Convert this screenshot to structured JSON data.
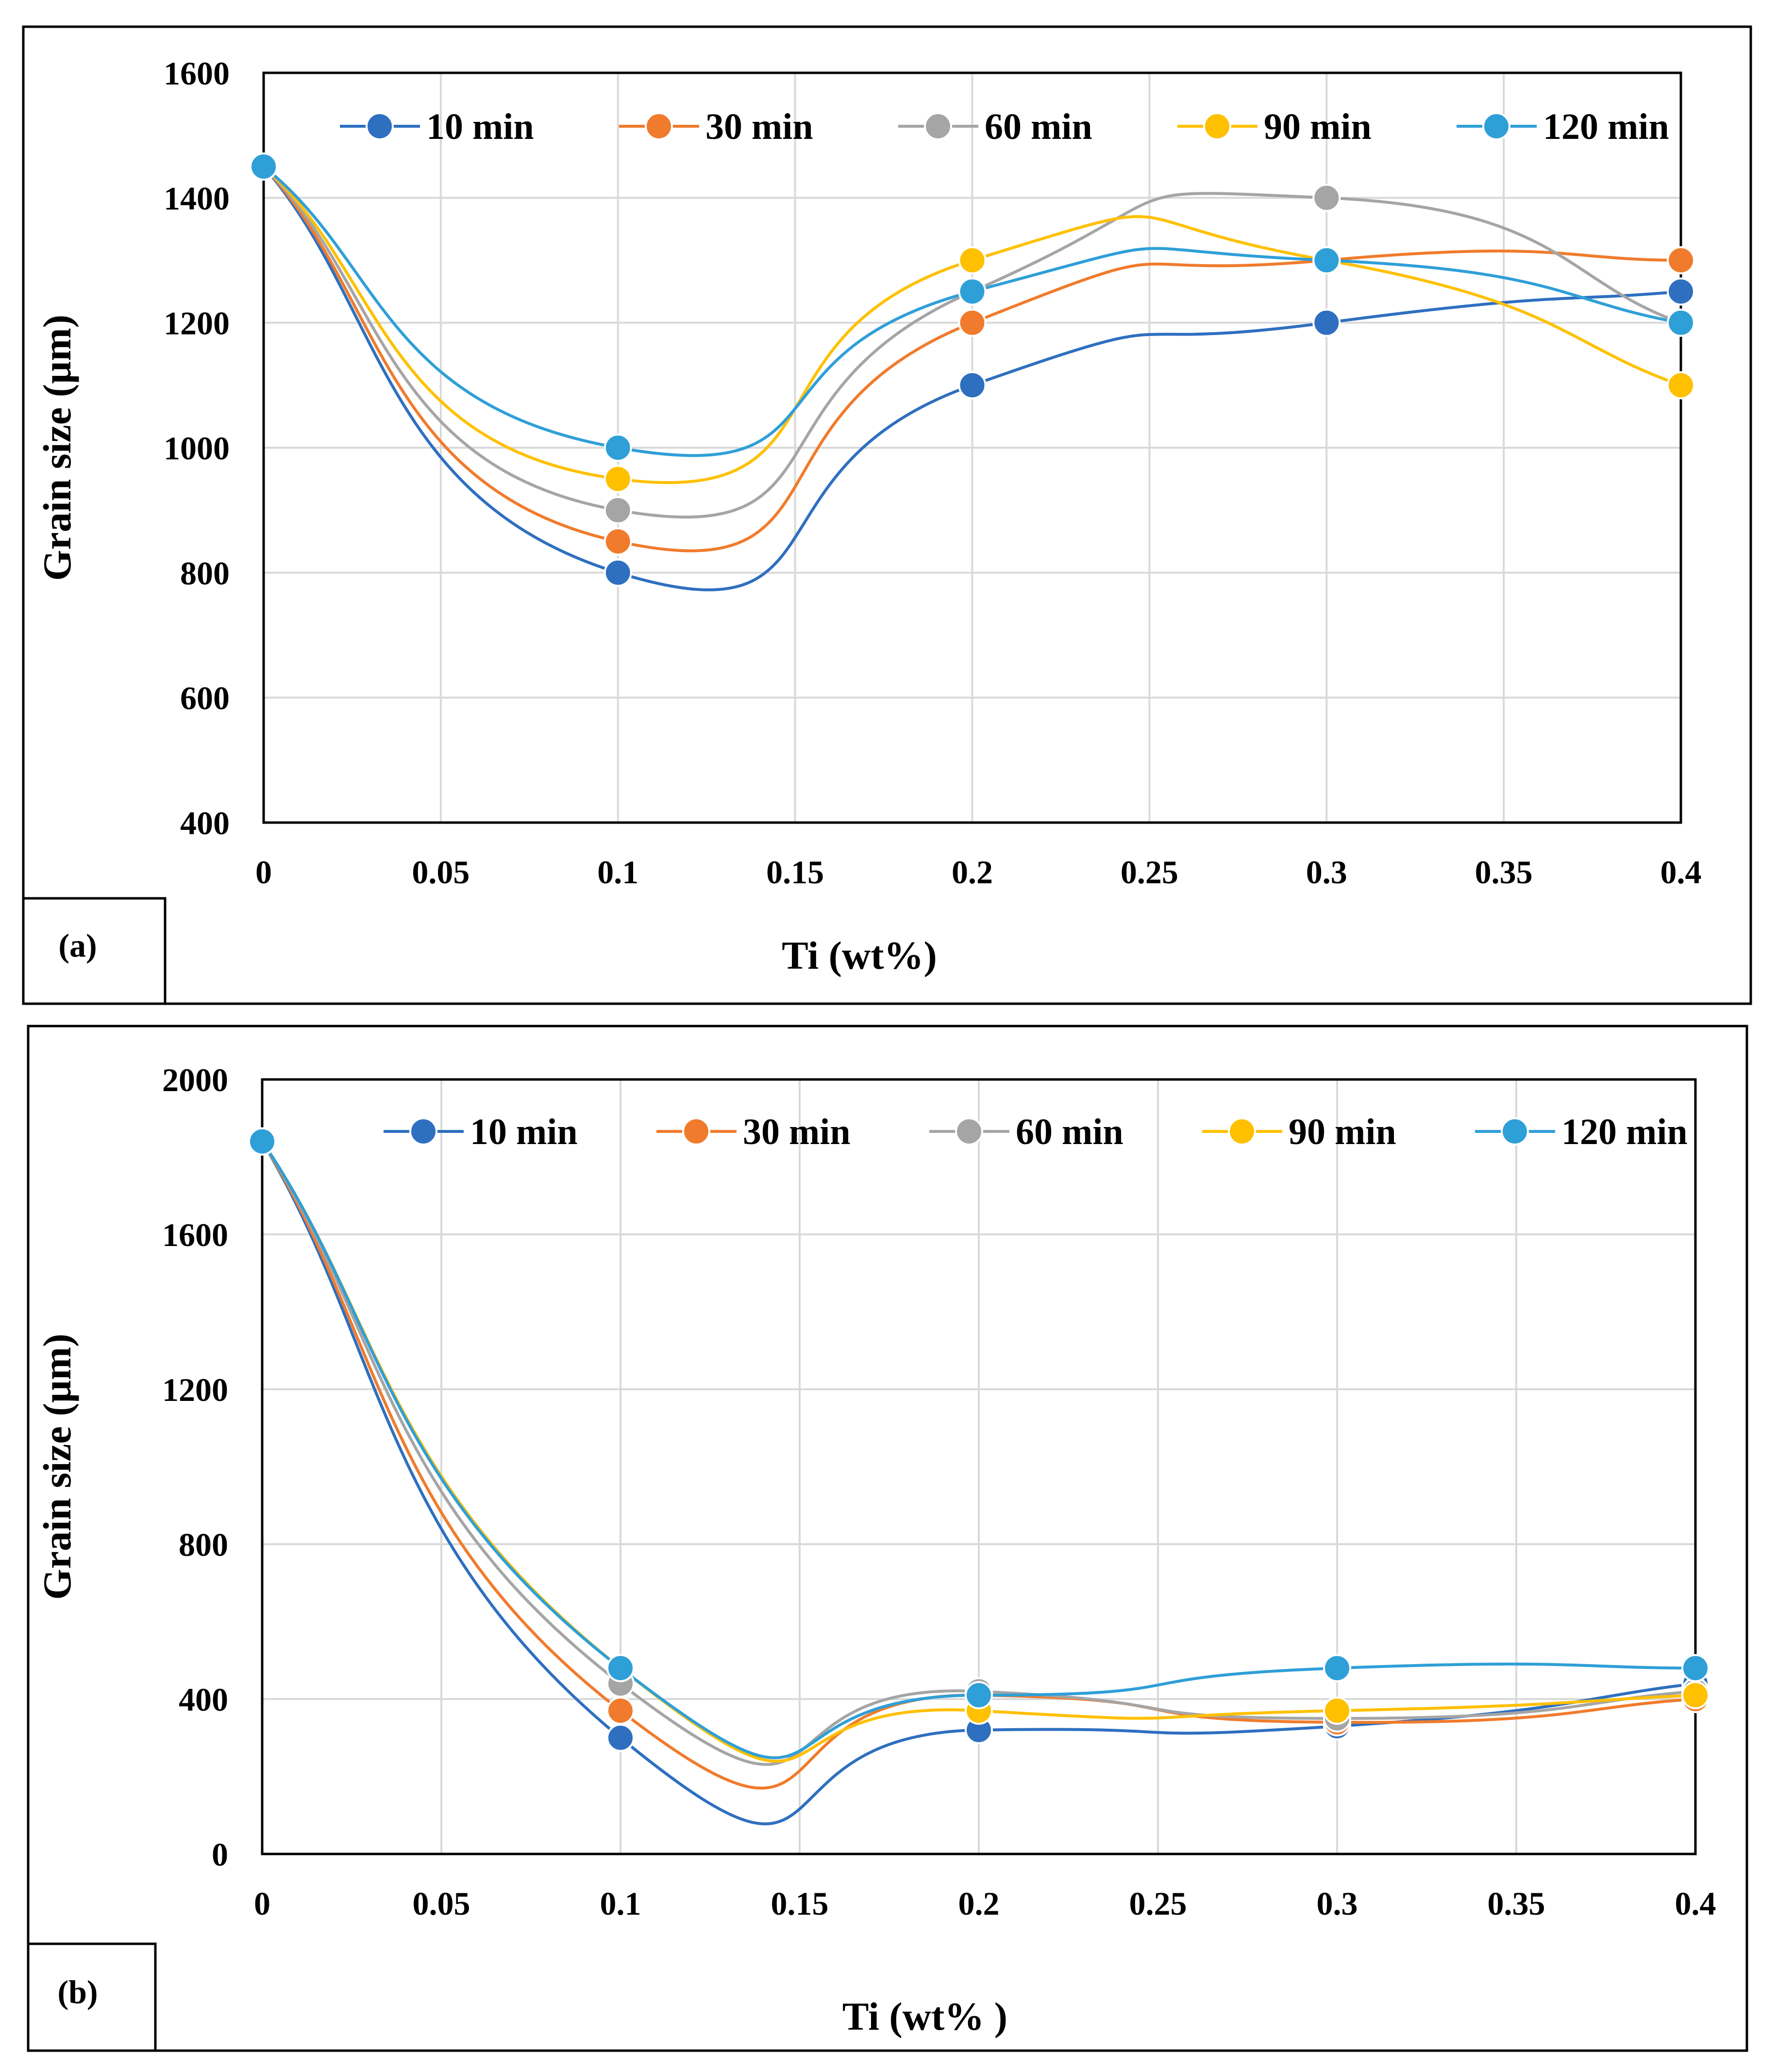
{
  "chart_data": [
    {
      "type": "line",
      "panel_label": "(a)",
      "xlabel": "Ti  (wt%)",
      "ylabel": "Grain size (µm)",
      "xlim": [
        0,
        0.4
      ],
      "ylim": [
        400,
        1600
      ],
      "x_ticks": [
        "0",
        "0.05",
        "0.1",
        "0.15",
        "0.2",
        "0.25",
        "0.3",
        "0.35",
        "0.4"
      ],
      "y_ticks": [
        "400",
        "600",
        "800",
        "1000",
        "1200",
        "1400",
        "1600"
      ],
      "grid": true,
      "legend_position": "top",
      "x": [
        0,
        0.1,
        0.2,
        0.3,
        0.4
      ],
      "series": [
        {
          "name": "10 min",
          "color": "#2e6fc0",
          "values": [
            1450,
            800,
            1100,
            1200,
            1250
          ]
        },
        {
          "name": "30 min",
          "color": "#f07b2c",
          "values": [
            1450,
            850,
            1200,
            1300,
            1300
          ]
        },
        {
          "name": "60 min",
          "color": "#a5a5a5",
          "values": [
            1450,
            900,
            1250,
            1400,
            1200
          ]
        },
        {
          "name": "90 min",
          "color": "#ffc000",
          "values": [
            1450,
            950,
            1300,
            1300,
            1100
          ]
        },
        {
          "name": "120 min",
          "color": "#2f9fd8",
          "values": [
            1450,
            1000,
            1250,
            1300,
            1200
          ]
        }
      ]
    },
    {
      "type": "line",
      "panel_label": "(b)",
      "xlabel": "Ti  (wt% )",
      "ylabel": "Grain size  (µm)",
      "xlim": [
        0,
        0.4
      ],
      "ylim": [
        0,
        2000
      ],
      "x_ticks": [
        "0",
        "0.05",
        "0.1",
        "0.15",
        "0.2",
        "0.25",
        "0.3",
        "0.35",
        "0.4"
      ],
      "y_ticks": [
        "0",
        "400",
        "800",
        "1200",
        "1600",
        "2000"
      ],
      "grid": true,
      "legend_position": "top",
      "x": [
        0,
        0.1,
        0.2,
        0.3,
        0.4
      ],
      "series": [
        {
          "name": "10 min",
          "color": "#2e6fc0",
          "values": [
            1840,
            300,
            320,
            330,
            440
          ]
        },
        {
          "name": "30 min",
          "color": "#f07b2c",
          "values": [
            1840,
            370,
            410,
            340,
            400
          ]
        },
        {
          "name": "60 min",
          "color": "#a5a5a5",
          "values": [
            1840,
            440,
            420,
            350,
            420
          ]
        },
        {
          "name": "90 min",
          "color": "#ffc000",
          "values": [
            1840,
            480,
            370,
            370,
            410
          ]
        },
        {
          "name": "120 min",
          "color": "#2f9fd8",
          "values": [
            1840,
            480,
            410,
            480,
            480
          ]
        }
      ]
    }
  ]
}
